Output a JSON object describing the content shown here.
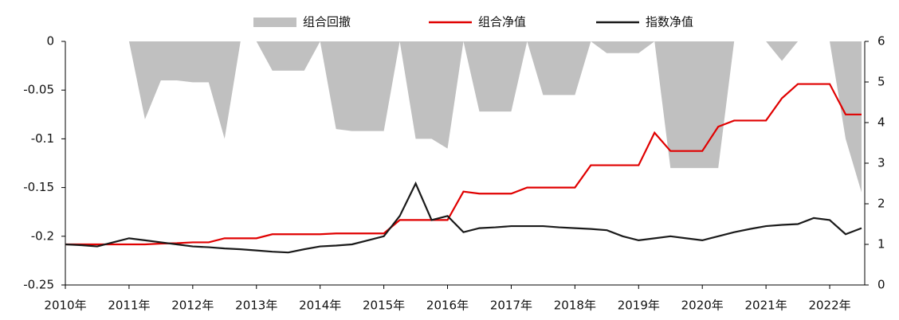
{
  "chart_data": {
    "type": "line",
    "x": [
      2010,
      2010.25,
      2010.5,
      2010.75,
      2011,
      2011.25,
      2011.5,
      2011.75,
      2012,
      2012.25,
      2012.5,
      2012.75,
      2013,
      2013.25,
      2013.5,
      2013.75,
      2014,
      2014.25,
      2014.5,
      2014.75,
      2015,
      2015.25,
      2015.5,
      2015.75,
      2016,
      2016.25,
      2016.5,
      2016.75,
      2017,
      2017.25,
      2017.5,
      2017.75,
      2018,
      2018.25,
      2018.5,
      2018.75,
      2019,
      2019.25,
      2019.5,
      2019.75,
      2020,
      2020.25,
      2020.5,
      2020.75,
      2021,
      2021.25,
      2021.5,
      2021.75,
      2022,
      2022.25,
      2022.5
    ],
    "xlim": [
      2010,
      2022.55
    ],
    "xticks": [
      {
        "value": 2010,
        "label": "2010年"
      },
      {
        "value": 2011,
        "label": "2011年"
      },
      {
        "value": 2012,
        "label": "2012年"
      },
      {
        "value": 2013,
        "label": "2013年"
      },
      {
        "value": 2014,
        "label": "2014年"
      },
      {
        "value": 2015,
        "label": "2015年"
      },
      {
        "value": 2016,
        "label": "2016年"
      },
      {
        "value": 2017,
        "label": "2017年"
      },
      {
        "value": 2018,
        "label": "2018年"
      },
      {
        "value": 2019,
        "label": "2019年"
      },
      {
        "value": 2020,
        "label": "2020年"
      },
      {
        "value": 2021,
        "label": "2021年"
      },
      {
        "value": 2022,
        "label": "2022年"
      }
    ],
    "ylim": [
      -0.25,
      0
    ],
    "yticks": [
      0,
      -0.05,
      -0.1,
      -0.15,
      -0.2,
      -0.25
    ],
    "y2lim": [
      0,
      6
    ],
    "y2ticks": [
      0,
      1,
      2,
      3,
      4,
      5,
      6
    ],
    "series": [
      {
        "name": "组合回撤",
        "type": "area",
        "color": "#c0c0c0",
        "values": [
          0,
          0,
          0,
          0,
          0,
          -0.08,
          -0.04,
          -0.04,
          -0.042,
          -0.042,
          -0.1,
          0,
          0,
          -0.03,
          -0.03,
          -0.03,
          0,
          -0.09,
          -0.092,
          -0.092,
          -0.092,
          0,
          -0.1,
          -0.1,
          -0.11,
          0,
          -0.072,
          -0.072,
          -0.072,
          0,
          -0.055,
          -0.055,
          -0.055,
          0,
          -0.012,
          -0.012,
          -0.012,
          0,
          -0.13,
          -0.13,
          -0.13,
          -0.13,
          0,
          0,
          0,
          -0.02,
          0,
          0,
          0,
          -0.1,
          -0.155
        ]
      },
      {
        "name": "组合净值",
        "type": "line",
        "axis": "y2",
        "color": "#e00000",
        "values": [
          1.0,
          1.0,
          1.0,
          1.0,
          1.0,
          1.0,
          1.02,
          1.03,
          1.05,
          1.05,
          1.15,
          1.15,
          1.15,
          1.25,
          1.25,
          1.25,
          1.25,
          1.27,
          1.27,
          1.27,
          1.27,
          1.6,
          1.6,
          1.6,
          1.6,
          2.3,
          2.25,
          2.25,
          2.25,
          2.4,
          2.4,
          2.4,
          2.4,
          2.95,
          2.95,
          2.95,
          2.95,
          3.75,
          3.3,
          3.3,
          3.3,
          3.9,
          4.05,
          4.05,
          4.05,
          4.6,
          4.95,
          4.95,
          4.95,
          4.2,
          4.2
        ]
      },
      {
        "name": "指数净值",
        "type": "line",
        "axis": "y2",
        "color": "#1a1a1a",
        "values": [
          1.0,
          0.98,
          0.95,
          1.05,
          1.15,
          1.1,
          1.05,
          1.0,
          0.95,
          0.93,
          0.9,
          0.88,
          0.85,
          0.82,
          0.8,
          0.88,
          0.95,
          0.97,
          1.0,
          1.1,
          1.2,
          1.7,
          2.5,
          1.6,
          1.7,
          1.3,
          1.4,
          1.42,
          1.45,
          1.45,
          1.45,
          1.42,
          1.4,
          1.38,
          1.35,
          1.2,
          1.1,
          1.15,
          1.2,
          1.15,
          1.1,
          1.2,
          1.3,
          1.38,
          1.45,
          1.48,
          1.5,
          1.65,
          1.6,
          1.25,
          1.4
        ]
      }
    ]
  }
}
